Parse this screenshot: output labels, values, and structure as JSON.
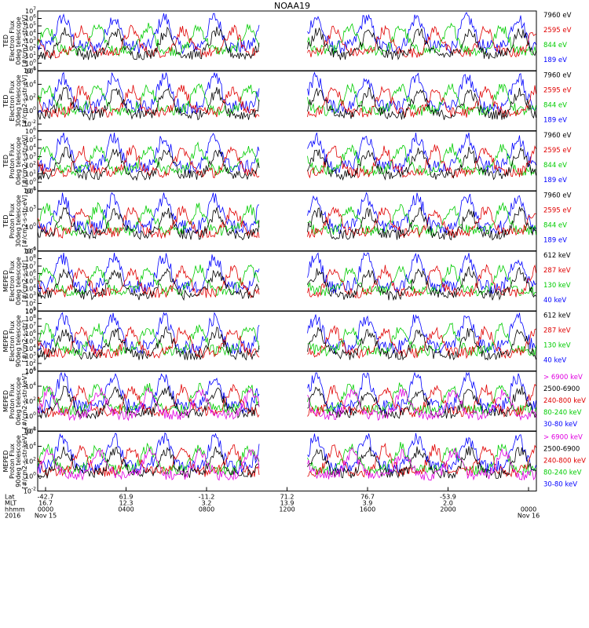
{
  "title": "NOAA19",
  "panels": [
    {
      "ylabel": [
        "TED",
        "Electron Flux",
        "0deg telescope",
        "[#/cm2-s-str-eV]"
      ],
      "ylim": [
        0.1,
        10000000
      ],
      "ytick_exps": [
        -1,
        0,
        1,
        2,
        3,
        4,
        5,
        6,
        7
      ],
      "legend": [
        {
          "text": "7960 eV",
          "color": "#000000"
        },
        {
          "text": "2595 eV",
          "color": "#e00000"
        },
        {
          "text": "844 eV",
          "color": "#00cc00"
        },
        {
          "text": "189 eV",
          "color": "#0000ff"
        }
      ]
    },
    {
      "ylabel": [
        "TED",
        "Electron Flux",
        "30deg telescope",
        "[#/cm2-s-str-eV]"
      ],
      "ylim": [
        0.001,
        1000000
      ],
      "ytick_exps": [
        -2,
        0,
        2,
        4,
        6
      ],
      "legend": [
        {
          "text": "7960 eV",
          "color": "#000000"
        },
        {
          "text": "2595 eV",
          "color": "#e00000"
        },
        {
          "text": "844 eV",
          "color": "#00cc00"
        },
        {
          "text": "189 eV",
          "color": "#0000ff"
        }
      ]
    },
    {
      "ylabel": [
        "TED",
        "Proton Flux",
        "0deg telescope",
        "[#/cm2-s-str-eV]"
      ],
      "ylim": [
        0.1,
        1000000
      ],
      "ytick_exps": [
        -1,
        0,
        1,
        2,
        3,
        4,
        5,
        6
      ],
      "legend": [
        {
          "text": "7960 eV",
          "color": "#000000"
        },
        {
          "text": "2595 eV",
          "color": "#e00000"
        },
        {
          "text": "844 eV",
          "color": "#00cc00"
        },
        {
          "text": "189 eV",
          "color": "#0000ff"
        }
      ]
    },
    {
      "ylabel": [
        "TED",
        "Proton Flux",
        "30deg telescope",
        "[#/cm2-s-str-eV]"
      ],
      "ylim": [
        0.0001,
        1000000
      ],
      "ytick_exps": [
        -4,
        0,
        3,
        6
      ],
      "legend": [
        {
          "text": "7960 eV",
          "color": "#000000"
        },
        {
          "text": "2595 eV",
          "color": "#e00000"
        },
        {
          "text": "844 eV",
          "color": "#00cc00"
        },
        {
          "text": "189 eV",
          "color": "#0000ff"
        }
      ]
    },
    {
      "ylabel": [
        "MEPED",
        "Electron Flux",
        "0deg telescope",
        "[#/cm2-s-str]"
      ],
      "ylim": [
        10,
        1000000000
      ],
      "ytick_exps": [
        1,
        2,
        3,
        4,
        5,
        6,
        7,
        8,
        9
      ],
      "legend": [
        {
          "text": "612 keV",
          "color": "#000000"
        },
        {
          "text": "287 keV",
          "color": "#e00000"
        },
        {
          "text": "130 keV",
          "color": "#00cc00"
        },
        {
          "text": "40 keV",
          "color": "#0000ff"
        }
      ]
    },
    {
      "ylabel": [
        "MEPED",
        "Electron Flux",
        "90deg telescope",
        "[#/cm2-s-str]"
      ],
      "ylim": [
        10,
        1000000000
      ],
      "ytick_exps": [
        1,
        2,
        3,
        4,
        5,
        6,
        7,
        8,
        9
      ],
      "legend": [
        {
          "text": "612 keV",
          "color": "#000000"
        },
        {
          "text": "287 keV",
          "color": "#e00000"
        },
        {
          "text": "130 keV",
          "color": "#00cc00"
        },
        {
          "text": "40 keV",
          "color": "#0000ff"
        }
      ]
    },
    {
      "ylabel": [
        "MEPED",
        "Proton Flux",
        "0deg telescope",
        "[#/cm2-s-str-keV]"
      ],
      "ylim": [
        0.01,
        1000000
      ],
      "ytick_exps": [
        -2,
        0,
        2,
        4,
        6
      ],
      "legend": [
        {
          "text": "> 6900 keV",
          "color": "#e000e0"
        },
        {
          "text": "2500-6900",
          "color": "#000000"
        },
        {
          "text": "240-800 keV",
          "color": "#e00000"
        },
        {
          "text": "80-240 keV",
          "color": "#00cc00"
        },
        {
          "text": "30-80 keV",
          "color": "#0000ff"
        }
      ]
    },
    {
      "ylabel": [
        "MEPED",
        "Proton Flux",
        "90deg telescope",
        "[#/cm2-s-str-keV]"
      ],
      "ylim": [
        0.01,
        1000000
      ],
      "ytick_exps": [
        -2,
        0,
        2,
        4,
        6
      ],
      "legend": [
        {
          "text": "> 6900 keV",
          "color": "#e000e0"
        },
        {
          "text": "2500-6900",
          "color": "#000000"
        },
        {
          "text": "240-800 keV",
          "color": "#e00000"
        },
        {
          "text": "80-240 keV",
          "color": "#00cc00"
        },
        {
          "text": "30-80 keV",
          "color": "#0000ff"
        }
      ]
    }
  ],
  "xaxis": {
    "row_labels": [
      "Lat",
      "MLT",
      "hhmm",
      "2016"
    ],
    "ticks": [
      {
        "lat": "-42.7",
        "mlt": "16.7",
        "hhmm": "0000",
        "date": "Nov 15"
      },
      {
        "lat": "61.9",
        "mlt": "12.3",
        "hhmm": "0400",
        "date": ""
      },
      {
        "lat": "-11.2",
        "mlt": "3.2",
        "hhmm": "0800",
        "date": ""
      },
      {
        "lat": "71.2",
        "mlt": "13.9",
        "hhmm": "1200",
        "date": ""
      },
      {
        "lat": "76.7",
        "mlt": "3.9",
        "hhmm": "1600",
        "date": ""
      },
      {
        "lat": "-53.9",
        "mlt": "2.0",
        "hhmm": "2000",
        "date": ""
      },
      {
        "lat": "",
        "mlt": "",
        "hhmm": "0000",
        "date": "Nov 16"
      }
    ]
  },
  "chart_data": {
    "type": "line",
    "title": "NOAA19",
    "x_range_hours": [
      0,
      24
    ],
    "data_gap_hours": [
      10.7,
      13.0
    ],
    "yscale": "log",
    "grid": false,
    "legend_placement": "right of each panel",
    "panel_count": 8
  }
}
